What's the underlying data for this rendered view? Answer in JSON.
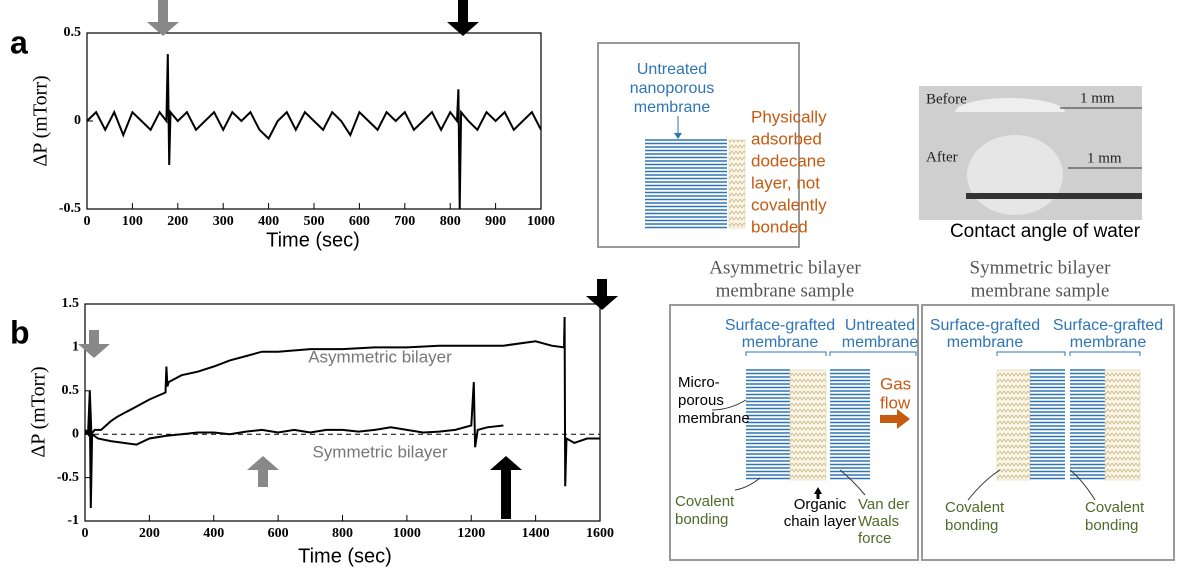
{
  "panel_labels": [
    "a",
    "b"
  ],
  "chart_data": [
    {
      "type": "line",
      "xlabel": "Time (sec)",
      "ylabel": "ΔP (mTorr)",
      "color": "#000000",
      "xlim": [
        0,
        1000
      ],
      "ylim": [
        -0.5,
        0.5
      ],
      "xticks": [
        0,
        100,
        200,
        300,
        400,
        500,
        600,
        700,
        800,
        900,
        1000
      ],
      "yticks": [
        -0.5,
        0,
        0.5
      ],
      "x": [
        0,
        20,
        40,
        60,
        80,
        100,
        120,
        140,
        160,
        175,
        178,
        181,
        184,
        200,
        220,
        240,
        260,
        280,
        300,
        320,
        340,
        360,
        380,
        400,
        420,
        440,
        460,
        480,
        500,
        520,
        540,
        560,
        580,
        600,
        620,
        640,
        660,
        680,
        700,
        720,
        740,
        760,
        780,
        800,
        815,
        818,
        821,
        824,
        840,
        860,
        880,
        900,
        920,
        940,
        960,
        980,
        1000
      ],
      "values": [
        0,
        0.05,
        -0.05,
        0.05,
        -0.08,
        0.05,
        0,
        -0.05,
        0.05,
        0,
        0.38,
        -0.25,
        0.05,
        0,
        0.05,
        -0.05,
        0,
        0.05,
        -0.05,
        0.05,
        0,
        0.05,
        -0.05,
        -0.1,
        0,
        0.05,
        -0.05,
        0.05,
        0,
        -0.05,
        0.05,
        0,
        -0.08,
        0.05,
        0,
        -0.05,
        0.05,
        0,
        0.05,
        -0.05,
        0,
        0.05,
        -0.05,
        0.05,
        0,
        0.18,
        -0.5,
        0.05,
        0,
        -0.05,
        0.05,
        0,
        0.05,
        -0.05,
        0,
        0.05,
        -0.05
      ]
    },
    {
      "type": "line",
      "xlabel": "Time (sec)",
      "ylabel": "ΔP (mTorr)",
      "xlim": [
        0,
        1600
      ],
      "ylim": [
        -1,
        1.5
      ],
      "xticks": [
        0,
        200,
        400,
        600,
        800,
        1000,
        1200,
        1400,
        1600
      ],
      "yticks": [
        -1,
        -0.5,
        0,
        0.5,
        1,
        1.5
      ],
      "hline": 0,
      "series": [
        {
          "name": "Asymmetric bilayer",
          "color": "#000000",
          "x": [
            0,
            10,
            15,
            20,
            30,
            50,
            80,
            100,
            150,
            200,
            250,
            253,
            256,
            260,
            300,
            350,
            400,
            450,
            500,
            550,
            600,
            700,
            800,
            900,
            1000,
            1100,
            1200,
            1300,
            1400,
            1450,
            1488,
            1490,
            1492,
            1496,
            1520,
            1560,
            1600
          ],
          "values": [
            0,
            0.05,
            0.5,
            0,
            0.05,
            0.05,
            0.15,
            0.2,
            0.3,
            0.4,
            0.48,
            0.78,
            0.55,
            0.6,
            0.68,
            0.72,
            0.78,
            0.85,
            0.9,
            0.95,
            0.95,
            0.98,
            0.98,
            1,
            1,
            1.02,
            1.02,
            1.02,
            1.07,
            1.02,
            1,
            1.35,
            -0.6,
            -0.05,
            -0.1,
            -0.05,
            -0.05
          ]
        },
        {
          "name": "Symmetric bilayer",
          "color": "#000000",
          "x": [
            0,
            10,
            15,
            18,
            22,
            40,
            80,
            120,
            160,
            200,
            250,
            300,
            350,
            400,
            450,
            500,
            550,
            600,
            650,
            700,
            750,
            800,
            850,
            900,
            950,
            1000,
            1050,
            1100,
            1150,
            1200,
            1208,
            1212,
            1220,
            1250,
            1300
          ],
          "values": [
            0.05,
            0,
            0.3,
            -0.85,
            0,
            -0.05,
            -0.08,
            -0.1,
            -0.12,
            -0.05,
            -0.02,
            0,
            0.02,
            0.02,
            0,
            0.03,
            0.05,
            0.02,
            0.05,
            0.02,
            0.05,
            0.05,
            0.03,
            0.05,
            0.08,
            0.05,
            0.02,
            0.03,
            0.05,
            0.1,
            0.6,
            -0.15,
            0.05,
            0.08,
            0.1
          ]
        }
      ]
    }
  ],
  "diagram_a": {
    "membrane_label": [
      "Untreated",
      "nanoporous",
      "membrane"
    ],
    "layer_label": [
      "Physically",
      "adsorbed",
      "dodecane",
      "layer, not",
      "covalently",
      "bonded"
    ]
  },
  "photo": {
    "before": "Before",
    "after": "After",
    "scale_before": "1 mm",
    "scale_after": "1 mm",
    "caption": "Contact angle of water"
  },
  "diagram_b": {
    "asymmetric": {
      "title": [
        "Asymmetric bilayer",
        "membrane sample"
      ],
      "grafted": [
        "Surface-grafted",
        "membrane"
      ],
      "untreated": [
        "Untreated",
        "membrane"
      ],
      "microporous": [
        "Micro-",
        "porous",
        "membrane"
      ],
      "gas_flow": [
        "Gas",
        "flow"
      ],
      "covalent": [
        "Covalent",
        "bonding"
      ],
      "organic": [
        "Organic",
        "chain layer"
      ],
      "vdw": [
        "Van der",
        "Waals",
        "force"
      ]
    },
    "symmetric": {
      "title": [
        "Symmetric bilayer",
        "membrane sample"
      ],
      "grafted_left": [
        "Surface-grafted",
        "membrane"
      ],
      "grafted_right": [
        "Surface-grafted",
        "membrane"
      ],
      "covalent_left": [
        "Covalent",
        "bonding"
      ],
      "covalent_right": [
        "Covalent",
        "bonding"
      ]
    }
  }
}
